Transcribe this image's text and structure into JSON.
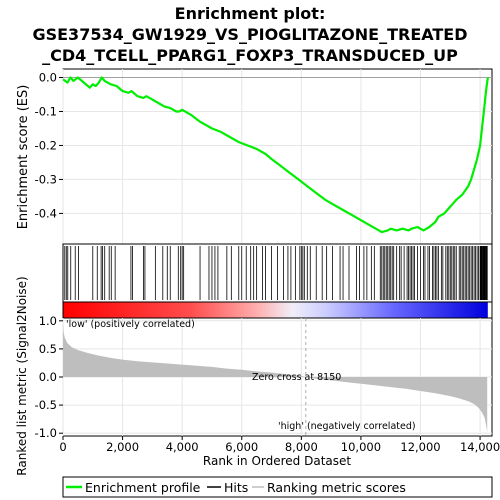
{
  "title_line1": "Enrichment plot:",
  "title_line2": "GSE37534_GW1929_VS_PIOGLITAZONE_TREATED",
  "title_line3": "_CD4_TCELL_PPARG1_FOXP3_TRANSDUCED_UP",
  "colors": {
    "profile": "#00ee00",
    "hit": "#000000",
    "metric_fill": "#bebebe",
    "zero_line": "#bebebe",
    "label_low": "#ff0000",
    "label_high": "#0000ff"
  },
  "legend": {
    "profile": "Enrichment profile",
    "hits": "Hits",
    "metric": "Ranking metric scores"
  },
  "chart_data": [
    {
      "type": "line",
      "ylabel": "Enrichment score (ES)",
      "xlim": [
        0,
        14400
      ],
      "ylim": [
        -0.49,
        0.025
      ],
      "yticks": [
        0.0,
        -0.1,
        -0.2,
        -0.3,
        -0.4
      ],
      "ytick_labels": [
        "0.0",
        "-0.1",
        "-0.2",
        "-0.3",
        "-0.4"
      ],
      "grid": true,
      "series": [
        {
          "x": [
            0,
            150,
            250,
            350,
            500,
            700,
            900,
            1000,
            1100,
            1200,
            1300,
            1400,
            1600,
            1800,
            2000,
            2200,
            2300,
            2500,
            2700,
            2800,
            3000,
            3200,
            3400,
            3600,
            3800,
            3900,
            4000,
            4300,
            4600,
            4800,
            5000,
            5300,
            5600,
            5900,
            6200,
            6500,
            6800,
            7000,
            7300,
            7600,
            7900,
            8200,
            8500,
            8800,
            9100,
            9400,
            9700,
            10000,
            10300,
            10500,
            10700,
            10900,
            11000,
            11200,
            11400,
            11600,
            11700,
            11900,
            12100,
            12300,
            12500,
            12600,
            12800,
            13000,
            13200,
            13400,
            13600,
            13700,
            13800,
            13900,
            14000,
            14050,
            14100,
            14150,
            14200,
            14260
          ],
          "y": [
            -0.005,
            -0.015,
            0.0,
            -0.01,
            0.0,
            -0.015,
            -0.03,
            -0.02,
            -0.025,
            -0.015,
            0.0,
            -0.01,
            -0.02,
            -0.025,
            -0.04,
            -0.045,
            -0.04,
            -0.055,
            -0.06,
            -0.055,
            -0.065,
            -0.075,
            -0.085,
            -0.09,
            -0.1,
            -0.1,
            -0.095,
            -0.11,
            -0.13,
            -0.14,
            -0.15,
            -0.16,
            -0.175,
            -0.19,
            -0.2,
            -0.21,
            -0.225,
            -0.24,
            -0.26,
            -0.28,
            -0.3,
            -0.32,
            -0.34,
            -0.36,
            -0.375,
            -0.39,
            -0.405,
            -0.42,
            -0.435,
            -0.445,
            -0.455,
            -0.45,
            -0.445,
            -0.45,
            -0.445,
            -0.45,
            -0.445,
            -0.44,
            -0.45,
            -0.44,
            -0.425,
            -0.41,
            -0.4,
            -0.38,
            -0.36,
            -0.345,
            -0.32,
            -0.3,
            -0.27,
            -0.24,
            -0.2,
            -0.16,
            -0.12,
            -0.08,
            -0.04,
            0.0
          ]
        }
      ]
    },
    {
      "type": "bar",
      "name": "hits",
      "xlim": [
        0,
        14400
      ],
      "hit_positions": [
        60,
        110,
        160,
        260,
        410,
        520,
        1000,
        1150,
        1280,
        1330,
        1400,
        1550,
        1620,
        1750,
        2280,
        2330,
        2700,
        2750,
        3100,
        3350,
        3500,
        3600,
        3870,
        3950,
        4000,
        4050,
        4600,
        4900,
        5000,
        5100,
        5200,
        5500,
        5650,
        5900,
        6000,
        6150,
        6300,
        6400,
        6500,
        6700,
        6800,
        7000,
        7200,
        7400,
        7550,
        7650,
        7800,
        7950,
        8000,
        8050,
        8100,
        8200,
        8300,
        8500,
        8700,
        8850,
        9050,
        9300,
        9400,
        9600,
        9850,
        9950,
        10100,
        10200,
        10350,
        10450,
        10650,
        10700,
        10750,
        10800,
        10850,
        10900,
        10950,
        11000,
        11050,
        11100,
        11200,
        11300,
        11350,
        11450,
        11550,
        11600,
        11650,
        11700,
        11750,
        11800,
        11900,
        12000,
        12100,
        12150,
        12250,
        12300,
        12400,
        12450,
        12500,
        12550,
        12600,
        12700,
        12750,
        12850,
        12900,
        12950,
        13000,
        13050,
        13100,
        13150,
        13200,
        13300,
        13350,
        13400,
        13450,
        13500,
        13550,
        13600,
        13650,
        13700,
        13750,
        13800,
        13850,
        13900,
        13950,
        14000,
        14020,
        14040,
        14060,
        14080,
        14100,
        14120,
        14140,
        14160,
        14180,
        14200,
        14220,
        14240
      ]
    },
    {
      "type": "area",
      "xlabel": "Rank in Ordered Dataset",
      "ylabel": "Ranked list metric (Signal2Noise)",
      "xlim": [
        0,
        14400
      ],
      "ylim": [
        -1.05,
        1.05
      ],
      "xticks": [
        0,
        2000,
        4000,
        6000,
        8000,
        10000,
        12000,
        14000
      ],
      "xtick_labels": [
        "0",
        "2,000",
        "4,000",
        "6,000",
        "8,000",
        "10,000",
        "12,000",
        "14,000"
      ],
      "yticks": [
        1.0,
        0.5,
        0.0,
        -0.5,
        -1.0
      ],
      "ytick_labels": [
        "1.0",
        "0.5",
        "0.0",
        "-0.5",
        "-1.0"
      ],
      "grid": true,
      "zero_cross_label": "Zero cross at 8150",
      "zero_cross_x": 8150,
      "low_label": "'low' (positively correlated)",
      "high_label": "'high' (negatively correlated)",
      "series": [
        {
          "x": [
            0,
            20,
            60,
            150,
            300,
            500,
            800,
            1200,
            1600,
            2000,
            2500,
            3000,
            3500,
            4000,
            4500,
            5000,
            5500,
            6000,
            6500,
            7000,
            7500,
            8000,
            8150,
            8500,
            9000,
            9500,
            10000,
            10500,
            11000,
            11500,
            12000,
            12500,
            13000,
            13300,
            13600,
            13800,
            13950,
            14050,
            14150,
            14200,
            14240
          ],
          "y": [
            0.98,
            0.8,
            0.7,
            0.6,
            0.53,
            0.48,
            0.43,
            0.38,
            0.34,
            0.31,
            0.28,
            0.26,
            0.24,
            0.22,
            0.2,
            0.18,
            0.15,
            0.13,
            0.1,
            0.08,
            0.05,
            0.02,
            0.0,
            -0.03,
            -0.06,
            -0.09,
            -0.12,
            -0.15,
            -0.18,
            -0.21,
            -0.25,
            -0.29,
            -0.34,
            -0.38,
            -0.43,
            -0.48,
            -0.55,
            -0.62,
            -0.72,
            -0.85,
            -0.98
          ]
        }
      ]
    }
  ]
}
